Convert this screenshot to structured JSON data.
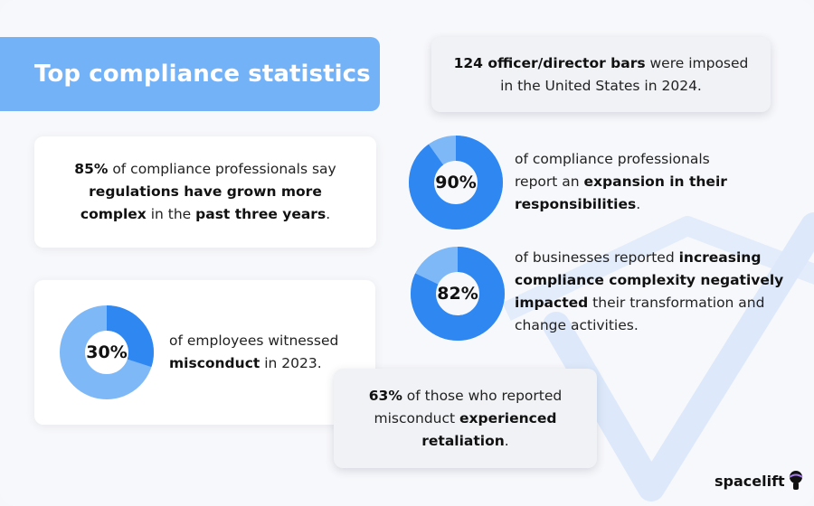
{
  "colors": {
    "accent": "#74b2f8",
    "donut_dark": "#2f87f2",
    "donut_light": "#7eb8f7",
    "check": "#dde9fb"
  },
  "title": "Top compliance statistics",
  "stat_bars": {
    "bold": "124 officer/director bars",
    "rest1": " were imposed",
    "rest2": "in the United States in 2024."
  },
  "stat_complex": {
    "b1": "85%",
    "t1": " of compliance professionals say",
    "b2": "regulations have grown more",
    "b3": "complex",
    "t2": " in the ",
    "b4": "past three years",
    "t3": "."
  },
  "stat_expansion": {
    "percent_label": "90%",
    "percent_value": 90,
    "t1": "of compliance professionals",
    "t2": "report an ",
    "b1": "expansion in their",
    "b2": "responsibilities",
    "t3": "."
  },
  "stat_businesses": {
    "percent_label": "82%",
    "percent_value": 82,
    "t1": "of businesses reported ",
    "b1": "increasing",
    "b2": "compliance complexity negatively",
    "b3": "impacted",
    "t2": " their transformation and",
    "t3": "change activities."
  },
  "stat_misconduct": {
    "percent_label": "30%",
    "percent_value": 30,
    "t1": "of employees witnessed",
    "b1": "misconduct",
    "t2": " in 2023."
  },
  "stat_retaliation": {
    "b1": "63%",
    "t1": " of those who reported",
    "t2": "misconduct ",
    "b2": "experienced",
    "b3": "retaliation",
    "t3": "."
  },
  "logo": {
    "text": "spacelift",
    "icon": "astronaut-helmet-icon"
  }
}
